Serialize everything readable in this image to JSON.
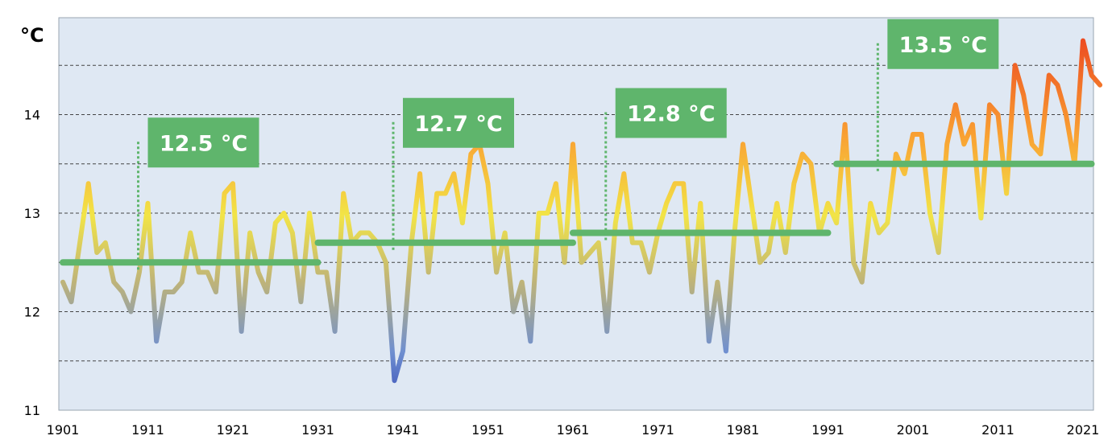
{
  "chart_data": {
    "type": "line",
    "ylabel": "°C",
    "ylim": [
      11,
      15
    ],
    "xlim": [
      1901,
      2023
    ],
    "yticks": [
      "11",
      "12",
      "13",
      "14"
    ],
    "xticks": [
      "1901",
      "1911",
      "1921",
      "1931",
      "1941",
      "1951",
      "1961",
      "1971",
      "1981",
      "1991",
      "2001",
      "2011",
      "2021"
    ],
    "grid": true,
    "gridlines": [
      11.5,
      12,
      12.5,
      13,
      13.5,
      14,
      14.5
    ],
    "series": [
      {
        "x": [
          1901,
          1902,
          1903,
          1904,
          1905,
          1906,
          1907,
          1908,
          1909,
          1910,
          1911,
          1912,
          1913,
          1914,
          1915,
          1916,
          1917,
          1918,
          1919,
          1920,
          1921,
          1922,
          1923,
          1924,
          1925,
          1926,
          1927,
          1928,
          1929,
          1930,
          1931,
          1932,
          1933,
          1934,
          1935,
          1936,
          1937,
          1938,
          1939,
          1940,
          1941,
          1942,
          1943,
          1944,
          1945,
          1946,
          1947,
          1948,
          1949,
          1950,
          1951,
          1952,
          1953,
          1954,
          1955,
          1956,
          1957,
          1958,
          1959,
          1960,
          1961,
          1962,
          1963,
          1964,
          1965,
          1966,
          1967,
          1968,
          1969,
          1970,
          1971,
          1972,
          1973,
          1974,
          1975,
          1976,
          1977,
          1978,
          1979,
          1980,
          1981,
          1982,
          1983,
          1984,
          1985,
          1986,
          1987,
          1988,
          1989,
          1990,
          1991,
          1992,
          1993,
          1994,
          1995,
          1996,
          1997,
          1998,
          1999,
          2000,
          2001,
          2002,
          2003,
          2004,
          2005,
          2006,
          2007,
          2008,
          2009,
          2010,
          2011,
          2012,
          2013,
          2014,
          2015,
          2016,
          2017,
          2018,
          2019,
          2020,
          2021,
          2022,
          2023
        ],
        "values": [
          12.3,
          12.1,
          12.7,
          13.3,
          12.6,
          12.7,
          12.3,
          12.2,
          12.0,
          12.4,
          13.1,
          11.7,
          12.2,
          12.2,
          12.3,
          12.8,
          12.4,
          12.4,
          12.2,
          13.2,
          13.3,
          11.8,
          12.8,
          12.4,
          12.2,
          12.9,
          13.0,
          12.8,
          12.1,
          13.0,
          12.4,
          12.4,
          11.8,
          13.2,
          12.7,
          12.8,
          12.8,
          12.7,
          12.5,
          11.3,
          11.6,
          12.7,
          13.4,
          12.4,
          13.2,
          13.2,
          13.4,
          12.9,
          13.6,
          13.7,
          13.3,
          12.4,
          12.8,
          12.0,
          12.3,
          11.7,
          13.0,
          13.0,
          13.3,
          12.5,
          13.7,
          12.5,
          12.6,
          12.7,
          11.8,
          12.9,
          13.4,
          12.7,
          12.7,
          12.4,
          12.8,
          13.1,
          13.3,
          13.3,
          12.2,
          13.1,
          11.7,
          12.3,
          11.6,
          12.8,
          13.7,
          13.1,
          12.5,
          12.6,
          13.1,
          12.6,
          13.3,
          13.6,
          13.5,
          12.8,
          13.1,
          12.9,
          13.9,
          12.5,
          12.3,
          13.1,
          12.8,
          12.9,
          13.6,
          13.4,
          13.8,
          13.8,
          13.0,
          12.6,
          13.7,
          14.1,
          13.7,
          13.9,
          12.95,
          14.1,
          14.0,
          13.2,
          14.5,
          14.2,
          13.7,
          13.6,
          14.4,
          14.3,
          14.0,
          13.5,
          14.75,
          14.4,
          14.3
        ]
      }
    ],
    "averages": [
      {
        "label": "12.5 °C",
        "value": 12.5,
        "from": 1901,
        "to": 1931,
        "label_year": 1911
      },
      {
        "label": "12.7 °C",
        "value": 12.7,
        "from": 1931,
        "to": 1961,
        "label_year": 1941
      },
      {
        "label": "12.8 °C",
        "value": 12.8,
        "from": 1961,
        "to": 1991,
        "label_year": 1966
      },
      {
        "label": "13.5 °C",
        "value": 13.5,
        "from": 1992,
        "to": 2022,
        "label_year": 1998
      }
    ],
    "colors": {
      "cold": "#3347b5",
      "cool": "#6f8fd0",
      "neutral": "#bfb478",
      "warm": "#f2e447",
      "hot": "#f9a233",
      "hottest": "#ea3b1e",
      "average": "#5fb56c",
      "plot_background": "#dfe8f3",
      "grid": "#444444"
    }
  }
}
